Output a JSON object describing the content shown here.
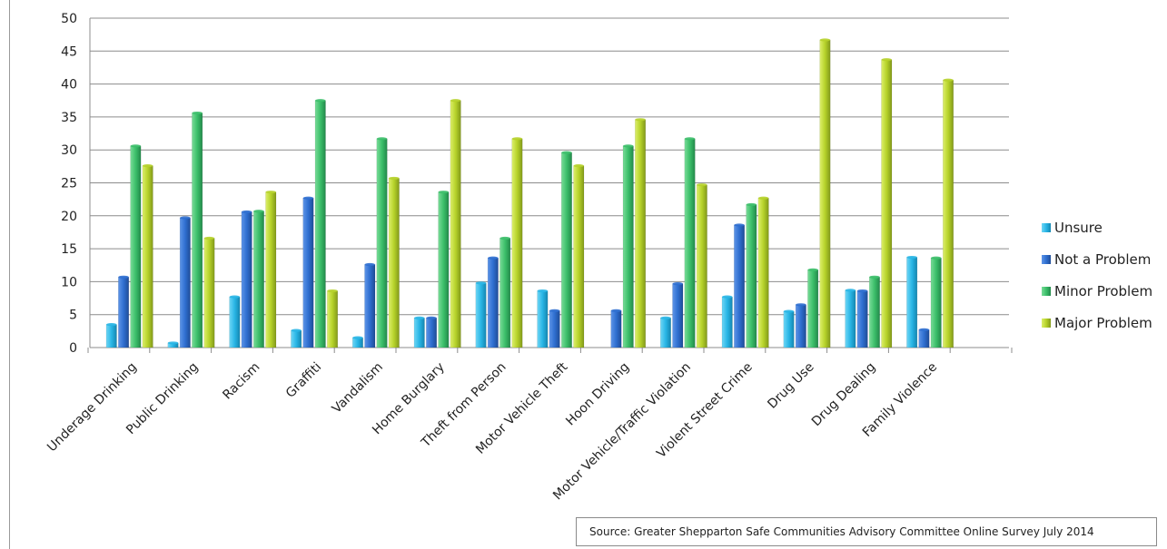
{
  "chart_data": {
    "type": "bar",
    "categories": [
      "Underage Drinking",
      "Public Drinking",
      "Racism",
      "Graffiti",
      "Vandalism",
      "Home Burglary",
      "Theft from Person",
      "Motor Vehicle Theft",
      "Hoon Driving",
      "Motor Vehicle/Traffic Violation",
      "Violent Street Crime",
      "Drug Use",
      "Drug Dealing",
      "Family Violence"
    ],
    "series": [
      {
        "name": "Unsure",
        "color": "#29b6e6",
        "values": [
          3.5,
          0.7,
          7.7,
          2.6,
          1.5,
          4.5,
          9.8,
          8.6,
          0,
          4.5,
          7.7,
          5.5,
          8.7,
          13.7
        ]
      },
      {
        "name": "Not a Problem",
        "color": "#2f6fd0",
        "values": [
          10.7,
          19.7,
          20.6,
          22.7,
          12.6,
          4.5,
          13.6,
          5.6,
          5.6,
          9.7,
          18.6,
          6.5,
          8.6,
          2.7
        ]
      },
      {
        "name": "Minor Problem",
        "color": "#3cbf6a",
        "values": [
          30.6,
          35.6,
          20.7,
          37.5,
          31.7,
          23.6,
          16.6,
          29.6,
          30.6,
          31.7,
          21.7,
          11.8,
          10.7,
          13.6
        ]
      },
      {
        "name": "Major Problem",
        "color": "#b6d22a",
        "values": [
          27.6,
          16.6,
          23.6,
          8.6,
          25.7,
          37.5,
          31.7,
          27.6,
          34.6,
          24.7,
          22.7,
          46.7,
          43.7,
          40.6
        ]
      }
    ],
    "ylim": [
      0,
      50
    ],
    "yticks": [
      "0",
      "5",
      "10",
      "15",
      "20",
      "25",
      "30",
      "35",
      "40",
      "45",
      "50"
    ],
    "grid": true,
    "legend_position": "right"
  },
  "source_note": "Source: Greater Shepparton Safe Communities Advisory Committee Online Survey July 2014"
}
